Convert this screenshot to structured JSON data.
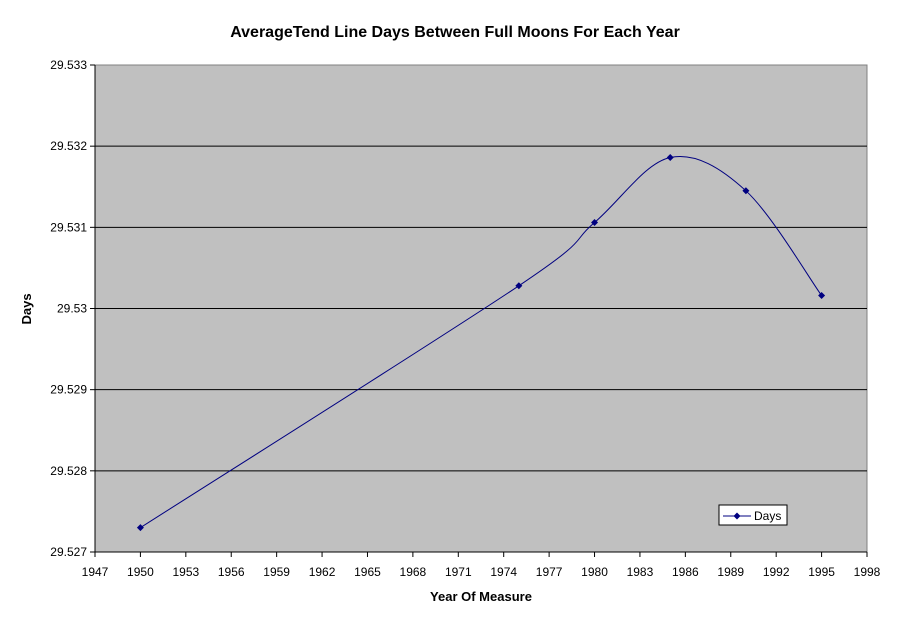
{
  "chart_data": {
    "type": "line",
    "title": "AverageTend Line Days Between Full Moons For Each Year",
    "xlabel": "Year Of Measure",
    "ylabel": "Days",
    "xlim": [
      1947,
      1998
    ],
    "ylim": [
      29.527,
      29.533
    ],
    "x_ticks": [
      "1947",
      "1950",
      "1953",
      "1956",
      "1959",
      "1962",
      "1965",
      "1968",
      "1971",
      "1974",
      "1977",
      "1980",
      "1983",
      "1986",
      "1989",
      "1992",
      "1995",
      "1998"
    ],
    "y_ticks": [
      "29.527",
      "29.528",
      "29.529",
      "29.53",
      "29.531",
      "29.532",
      "29.533"
    ],
    "grid": "horizontal",
    "plot_background": "#c0c0c0",
    "legend_position": "bottom-right",
    "series": [
      {
        "name": "Days",
        "color": "#000080",
        "marker": "diamond",
        "smoothed": true,
        "x": [
          1950,
          1975,
          1980,
          1985,
          1990,
          1995
        ],
        "y": [
          29.5273,
          29.53028,
          29.53106,
          29.53186,
          29.53145,
          29.53016
        ]
      }
    ]
  }
}
